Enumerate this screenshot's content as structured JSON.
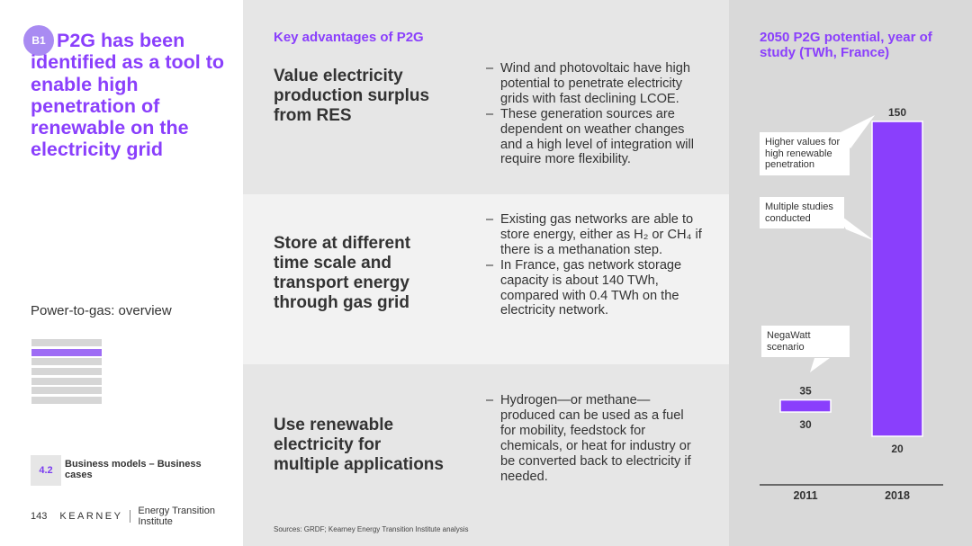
{
  "left": {
    "badge": "B1",
    "headline": "P2G has been identified as a tool to enable high penetration of renewable on the electricity grid",
    "subtitle": "Power-to-gas: overview",
    "nav_items": [
      false,
      true,
      false,
      false,
      false,
      false,
      false
    ],
    "section_number": "4.2",
    "section_label": "Business models – Business cases",
    "page_number": "143",
    "brand": "KEARNEY",
    "institute": "Energy Transition Institute"
  },
  "middle": {
    "heading": "Key advantages of P2G",
    "advantages": [
      {
        "title": "Value electricity production surplus from RES",
        "points": [
          "Wind and photovoltaic have high potential to penetrate electricity grids with fast declining LCOE.",
          "These generation sources are dependent on weather changes and a high level of integration will require more flexibility."
        ]
      },
      {
        "title": "Store at different time scale and transport energy through gas grid",
        "points": [
          "Existing gas networks are able to store energy, either as H₂ or CH₄ if there is a methanation step.",
          "In France, gas network storage capacity is about 140 TWh, compared with 0.4 TWh on the electricity network."
        ]
      },
      {
        "title": "Use renewable electricity for multiple applications",
        "points": [
          "Hydrogen—or methane—produced can be used as a fuel for mobility, feedstock for chemicals, or heat for industry or be converted back to electricity if needed."
        ]
      }
    ],
    "sources": "Sources: GRDF; Kearney Energy Transition Institute analysis"
  },
  "right": {
    "accent": "#8a3ffc",
    "callouts": {
      "higher": "Higher values for high renewable penetration",
      "multiple": "Multiple studies conducted",
      "negawatt": "NegaWatt scenario"
    }
  },
  "chart_data": {
    "type": "bar",
    "title": "2050 P2G potential, year of study (TWh, France)",
    "categories": [
      "2011",
      "2018"
    ],
    "series": [
      {
        "values": [
          [
            30,
            35
          ],
          [
            20,
            150
          ]
        ]
      }
    ],
    "labels": [
      {
        "category": "2011",
        "high": "35",
        "low": "30"
      },
      {
        "category": "2018",
        "high": "150",
        "low": "20"
      }
    ],
    "ylim": [
      0,
      150
    ],
    "grid": false,
    "legend": "none"
  }
}
